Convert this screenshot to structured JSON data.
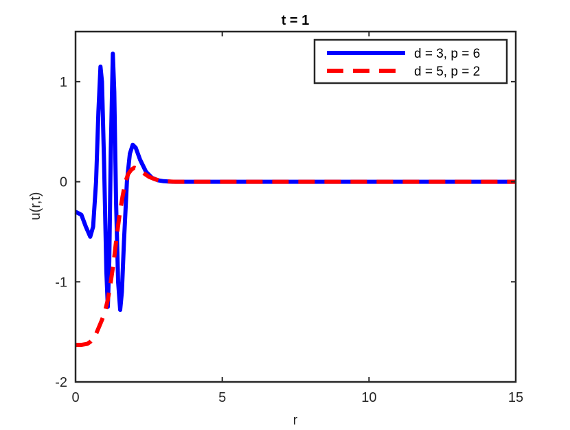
{
  "chart_data": {
    "type": "line",
    "title": "t = 1",
    "xlabel": "r",
    "ylabel": "u(r,t)",
    "xlim": [
      0,
      15
    ],
    "ylim": [
      -2,
      1.5
    ],
    "xticks": [
      0,
      5,
      10,
      15
    ],
    "yticks": [
      -2,
      -1,
      0,
      1
    ],
    "xtick_labels": [
      "0",
      "5",
      "10",
      "15"
    ],
    "ytick_labels": [
      "-2",
      "-1",
      "0",
      "1"
    ],
    "grid": false,
    "legend_position": "top-right",
    "series": [
      {
        "name": "d = 3, p = 6",
        "color": "#0000ff",
        "style": "solid",
        "x": [
          0,
          0.2,
          0.35,
          0.5,
          0.6,
          0.7,
          0.78,
          0.85,
          0.9,
          0.97,
          1.05,
          1.1,
          1.15,
          1.2,
          1.27,
          1.32,
          1.38,
          1.45,
          1.52,
          1.58,
          1.65,
          1.75,
          1.85,
          1.95,
          2.05,
          2.2,
          2.4,
          2.6,
          2.8,
          3.0,
          3.3,
          3.6,
          4.0,
          6,
          8,
          10,
          12,
          15
        ],
        "y": [
          -0.3,
          -0.33,
          -0.45,
          -0.55,
          -0.45,
          0.0,
          0.7,
          1.15,
          1.0,
          0.2,
          -0.9,
          -1.25,
          -0.8,
          0.3,
          1.28,
          0.9,
          -0.2,
          -1.0,
          -1.28,
          -1.1,
          -0.6,
          0.0,
          0.28,
          0.37,
          0.34,
          0.22,
          0.1,
          0.04,
          0.015,
          0.005,
          0.0,
          0.0,
          0.0,
          0.0,
          0.0,
          0.0,
          0.0,
          0.0
        ]
      },
      {
        "name": "d = 5, p = 2",
        "color": "#ff0000",
        "style": "dashed",
        "x": [
          0,
          0.2,
          0.4,
          0.5,
          0.6,
          0.7,
          0.8,
          0.9,
          1.0,
          1.1,
          1.2,
          1.3,
          1.4,
          1.5,
          1.6,
          1.7,
          1.8,
          1.9,
          2.0,
          2.1,
          2.2,
          2.35,
          2.5,
          2.7,
          2.9,
          3.1,
          3.4,
          3.8,
          4.5,
          6,
          8,
          10,
          12,
          15
        ],
        "y": [
          -1.63,
          -1.63,
          -1.62,
          -1.6,
          -1.57,
          -1.52,
          -1.45,
          -1.38,
          -1.3,
          -1.18,
          -1.0,
          -0.8,
          -0.55,
          -0.33,
          -0.15,
          0.0,
          0.08,
          0.12,
          0.14,
          0.13,
          0.11,
          0.08,
          0.05,
          0.025,
          0.01,
          0.004,
          0.0,
          0.0,
          0.0,
          0.0,
          0.0,
          0.0,
          0.0,
          0.0
        ]
      }
    ]
  }
}
